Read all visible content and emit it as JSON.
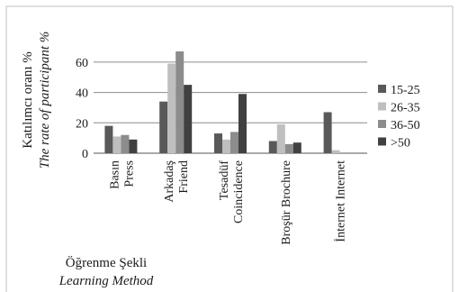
{
  "chart_data": {
    "type": "bar",
    "categories": [
      [
        "Basın",
        "Press"
      ],
      [
        "Arkadaş",
        "Friend"
      ],
      [
        "Tesadüf",
        "Coincidence"
      ],
      [
        "Broşür Brochure"
      ],
      [
        "İnternet Internet"
      ]
    ],
    "series": [
      {
        "name": "15-25",
        "values": [
          18,
          34,
          13,
          8,
          27
        ]
      },
      {
        "name": "26-35",
        "values": [
          11,
          59,
          9,
          19,
          2
        ]
      },
      {
        "name": "36-50",
        "values": [
          12,
          67,
          14,
          6,
          0
        ]
      },
      {
        "name": ">50",
        "values": [
          9,
          45,
          39,
          7,
          0
        ]
      }
    ],
    "ylabel": "Katılımcı oranı %",
    "ylabel_en": "The rate of participant %",
    "xlabel": "Öğrenme Şekli",
    "xlabel_en": "Learning Method",
    "ylim": [
      0,
      70
    ],
    "yticks": [
      "0",
      "20",
      "40",
      "60"
    ],
    "grid": true,
    "legend_position": "right",
    "colors": [
      "#595959",
      "#bfbfbf",
      "#8c8c8c",
      "#404040"
    ]
  }
}
